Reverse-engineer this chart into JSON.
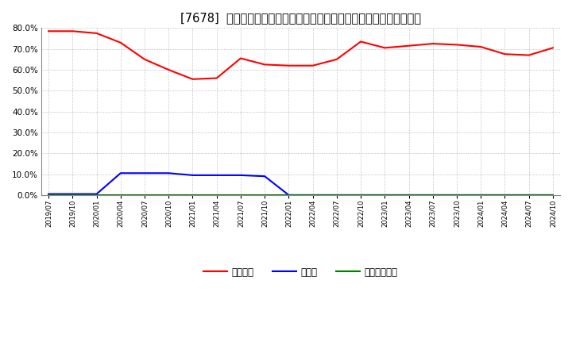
{
  "title": "[7678]  自己資本、のれん、繰延税金資産の総資産に対する比率の推移",
  "x_labels": [
    "2019/07",
    "2019/10",
    "2020/01",
    "2020/04",
    "2020/07",
    "2020/10",
    "2021/01",
    "2021/04",
    "2021/07",
    "2021/10",
    "2022/01",
    "2022/04",
    "2022/07",
    "2022/10",
    "2023/01",
    "2023/04",
    "2023/07",
    "2023/10",
    "2024/01",
    "2024/04",
    "2024/07",
    "2024/10"
  ],
  "jikoshihon": [
    78.5,
    78.5,
    77.5,
    73.0,
    65.0,
    60.0,
    55.5,
    56.0,
    65.5,
    62.5,
    62.0,
    62.0,
    65.0,
    73.5,
    70.5,
    71.5,
    72.5,
    72.0,
    71.0,
    67.5,
    67.0,
    70.5
  ],
  "noren": [
    0.5,
    0.5,
    0.5,
    10.5,
    10.5,
    10.5,
    9.5,
    9.5,
    9.5,
    9.0,
    0.0,
    0.0,
    0.0,
    0.0,
    0.0,
    0.0,
    0.0,
    0.0,
    0.0,
    0.0,
    0.0,
    0.0
  ],
  "kurinobe": [
    0.0,
    0.0,
    0.0,
    0.0,
    0.0,
    0.0,
    0.0,
    0.0,
    0.0,
    0.0,
    0.0,
    0.0,
    0.0,
    0.0,
    0.0,
    0.0,
    0.0,
    0.0,
    0.0,
    0.0,
    0.0,
    0.0
  ],
  "jikoshihon_color": "#ff0000",
  "noren_color": "#0000ff",
  "kurinobe_color": "#008000",
  "legend_labels": [
    "自己資本",
    "のれん",
    "繰延税金資産"
  ],
  "ylim": [
    0.0,
    80.0
  ],
  "yticks": [
    0.0,
    10.0,
    20.0,
    30.0,
    40.0,
    50.0,
    60.0,
    70.0,
    80.0
  ],
  "background_color": "#ffffff",
  "grid_color": "#999999",
  "title_fontsize": 10.5
}
